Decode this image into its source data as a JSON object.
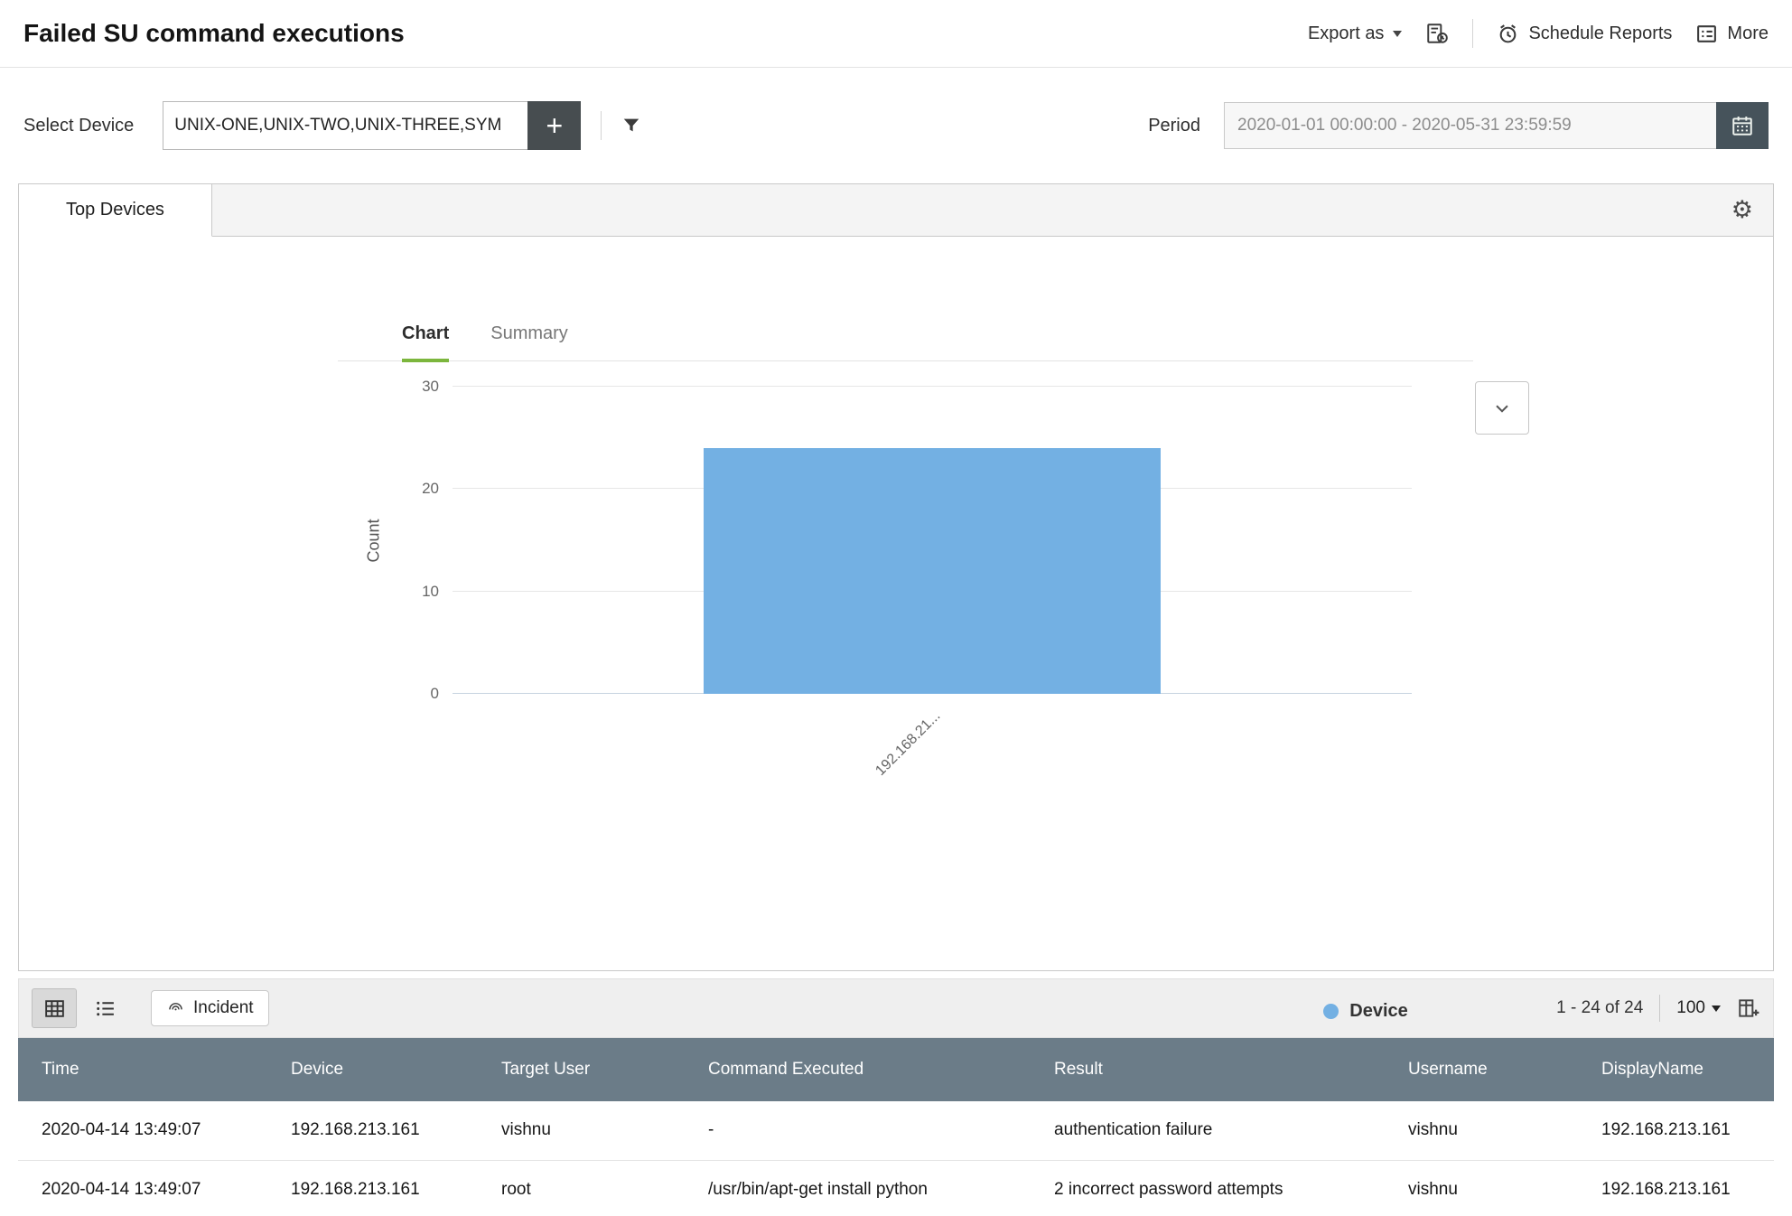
{
  "header": {
    "title": "Failed SU command executions",
    "export_as": "Export as",
    "schedule_reports": "Schedule Reports",
    "more": "More"
  },
  "filters": {
    "select_device_label": "Select Device",
    "device_value": "UNIX-ONE,UNIX-TWO,UNIX-THREE,SYM",
    "add_label": "+",
    "period_label": "Period",
    "period_value": "2020-01-01 00:00:00 - 2020-05-31 23:59:59"
  },
  "panel": {
    "tab_label": "Top Devices",
    "chart_tab": "Chart",
    "summary_tab": "Summary"
  },
  "chart_data": {
    "type": "bar",
    "title": "",
    "categories": [
      "192.168.21..."
    ],
    "values": [
      24
    ],
    "xlabel": "Device",
    "ylabel": "Count",
    "ylim": [
      0,
      30
    ],
    "yticks": [
      0,
      10,
      20,
      30
    ],
    "legend_label": "Device",
    "legend_position": "bottom-center",
    "grid": "horizontal"
  },
  "table": {
    "toolbar": {
      "incident_label": "Incident",
      "pagination": "1 - 24 of 24",
      "page_size": "100"
    },
    "columns": [
      "Time",
      "Device",
      "Target User",
      "Command Executed",
      "Result",
      "Username",
      "DisplayName"
    ],
    "rows": [
      [
        "2020-04-14 13:49:07",
        "192.168.213.161",
        "vishnu",
        "-",
        "authentication failure",
        "vishnu",
        "192.168.213.161"
      ],
      [
        "2020-04-14 13:49:07",
        "192.168.213.161",
        "root",
        "/usr/bin/apt-get install python",
        "2 incorrect password attempts",
        "vishnu",
        "192.168.213.161"
      ]
    ]
  },
  "colors": {
    "accent_green": "#7cb63d",
    "bar_blue": "#73b0e3",
    "table_header_bg": "#6b7c88",
    "dark_btn": "#474d50"
  }
}
